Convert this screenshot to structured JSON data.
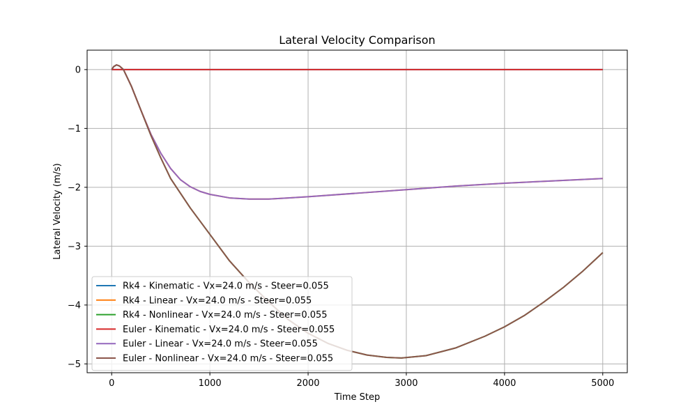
{
  "chart_data": {
    "type": "line",
    "title": "Lateral Velocity Comparison",
    "xlabel": "Time Step",
    "ylabel": "Lateral Velocity (m/s)",
    "xlim": [
      -250,
      5250
    ],
    "ylim": [
      -5.15,
      0.33
    ],
    "xticks": [
      0,
      1000,
      2000,
      3000,
      4000,
      5000
    ],
    "xtick_labels": [
      "0",
      "1000",
      "2000",
      "3000",
      "4000",
      "5000"
    ],
    "yticks": [
      0,
      -1,
      -2,
      -3,
      -4,
      -5
    ],
    "ytick_labels": [
      "0",
      "−1",
      "−2",
      "−3",
      "−4",
      "−5"
    ],
    "grid": true,
    "legend_position": "lower-left",
    "series": [
      {
        "name": "Rk4 - Kinematic - Vx=24.0 m/s - Steer=0.055",
        "color": "#1f77b4",
        "x": [
          0,
          5000
        ],
        "y": [
          0,
          0
        ]
      },
      {
        "name": "Rk4 - Linear - Vx=24.0 m/s - Steer=0.055",
        "color": "#ff7f0e",
        "x": [
          0,
          20,
          50,
          80,
          120,
          200,
          300,
          400,
          500,
          600,
          700,
          800,
          900,
          1000,
          1200,
          1400,
          1500,
          1600,
          1800,
          2000,
          2500,
          3000,
          3500,
          4000,
          4500,
          5000
        ],
        "y": [
          0,
          0.05,
          0.08,
          0.06,
          0.0,
          -0.28,
          -0.7,
          -1.1,
          -1.42,
          -1.68,
          -1.87,
          -1.99,
          -2.07,
          -2.12,
          -2.18,
          -2.2,
          -2.2,
          -2.2,
          -2.18,
          -2.16,
          -2.1,
          -2.04,
          -1.98,
          -1.93,
          -1.89,
          -1.85
        ]
      },
      {
        "name": "Rk4 - Nonlinear - Vx=24.0 m/s - Steer=0.055",
        "color": "#2ca02c",
        "x": [
          0,
          20,
          50,
          80,
          120,
          200,
          300,
          400,
          500,
          600,
          800,
          1000,
          1200,
          1400,
          1600,
          1800,
          2000,
          2200,
          2400,
          2600,
          2800,
          2950,
          3200,
          3500,
          3800,
          4000,
          4200,
          4400,
          4600,
          4800,
          5000
        ],
        "y": [
          0,
          0.05,
          0.08,
          0.06,
          0.0,
          -0.28,
          -0.7,
          -1.12,
          -1.5,
          -1.85,
          -2.35,
          -2.8,
          -3.25,
          -3.62,
          -3.95,
          -4.25,
          -4.48,
          -4.65,
          -4.77,
          -4.85,
          -4.89,
          -4.9,
          -4.86,
          -4.73,
          -4.53,
          -4.37,
          -4.18,
          -3.95,
          -3.7,
          -3.42,
          -3.11
        ]
      },
      {
        "name": "Euler - Kinematic - Vx=24.0 m/s - Steer=0.055",
        "color": "#d62728",
        "x": [
          0,
          5000
        ],
        "y": [
          0,
          0
        ]
      },
      {
        "name": "Euler - Linear - Vx=24.0 m/s - Steer=0.055",
        "color": "#9467bd",
        "x": [
          0,
          20,
          50,
          80,
          120,
          200,
          300,
          400,
          500,
          600,
          700,
          800,
          900,
          1000,
          1200,
          1400,
          1500,
          1600,
          1800,
          2000,
          2500,
          3000,
          3500,
          4000,
          4500,
          5000
        ],
        "y": [
          0,
          0.05,
          0.08,
          0.06,
          0.0,
          -0.28,
          -0.7,
          -1.1,
          -1.42,
          -1.68,
          -1.87,
          -1.99,
          -2.07,
          -2.12,
          -2.18,
          -2.2,
          -2.2,
          -2.2,
          -2.18,
          -2.16,
          -2.1,
          -2.04,
          -1.98,
          -1.93,
          -1.89,
          -1.85
        ]
      },
      {
        "name": "Euler - Nonlinear - Vx=24.0 m/s - Steer=0.055",
        "color": "#8c564b",
        "x": [
          0,
          20,
          50,
          80,
          120,
          200,
          300,
          400,
          500,
          600,
          800,
          1000,
          1200,
          1400,
          1600,
          1800,
          2000,
          2200,
          2400,
          2600,
          2800,
          2950,
          3200,
          3500,
          3800,
          4000,
          4200,
          4400,
          4600,
          4800,
          5000
        ],
        "y": [
          0,
          0.05,
          0.08,
          0.06,
          0.0,
          -0.28,
          -0.7,
          -1.12,
          -1.5,
          -1.85,
          -2.35,
          -2.8,
          -3.25,
          -3.62,
          -3.95,
          -4.25,
          -4.48,
          -4.65,
          -4.77,
          -4.85,
          -4.89,
          -4.9,
          -4.86,
          -4.73,
          -4.53,
          -4.37,
          -4.18,
          -3.95,
          -3.7,
          -3.42,
          -3.11
        ]
      }
    ]
  }
}
